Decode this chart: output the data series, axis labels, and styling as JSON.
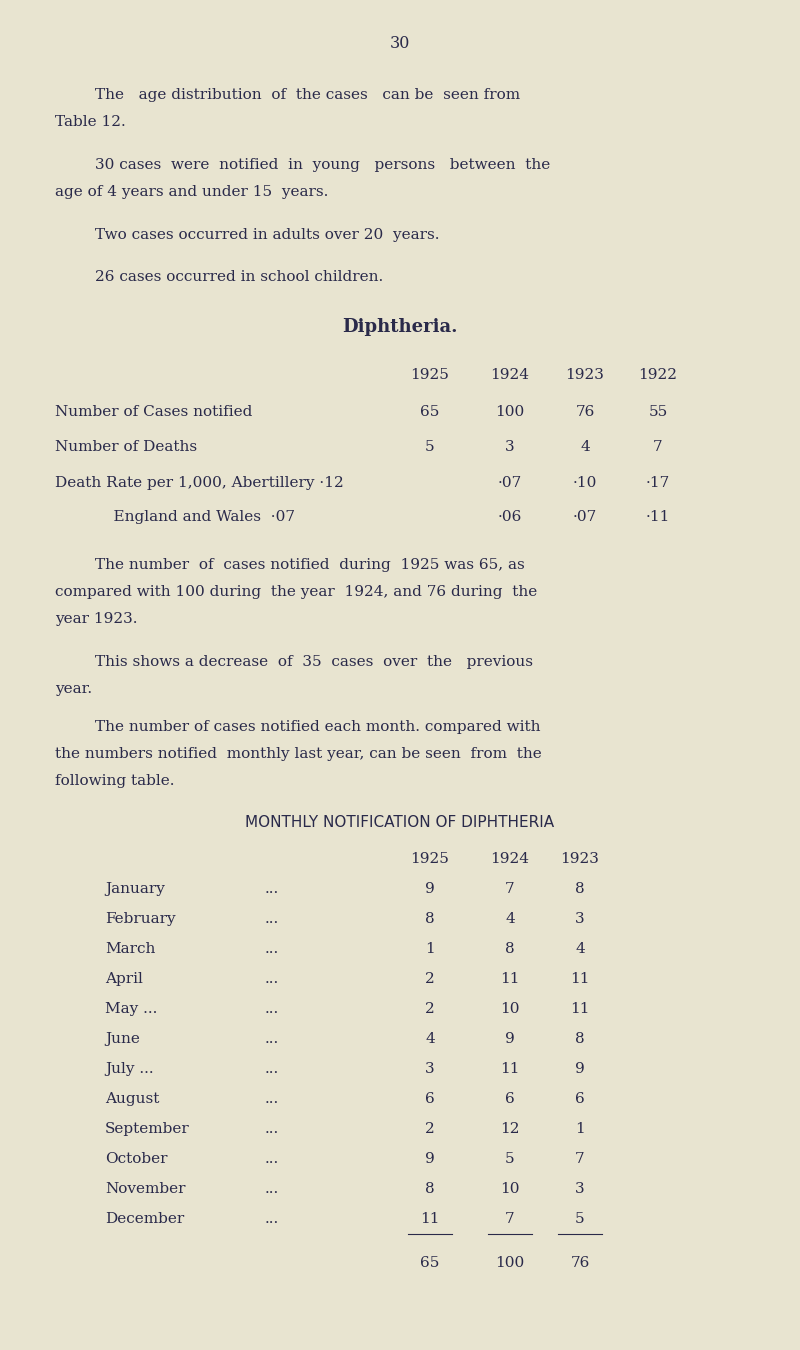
{
  "bg_color": "#e8e4d0",
  "text_color": "#2a2a4a",
  "page_number": "30",
  "table1_years": [
    "1925",
    "1924",
    "1923",
    "1922"
  ],
  "table1_rows": [
    {
      "label": "Number of Cases notified",
      "values": [
        "65",
        "100",
        "76",
        "55"
      ]
    },
    {
      "label": "Number of Deaths",
      "values": [
        "5",
        "3",
        "4",
        "7"
      ]
    },
    {
      "label": "Death Rate per 1,000, Abertillery ·12",
      "values": [
        "·07",
        "·10",
        "·17"
      ]
    },
    {
      "label": "            England and Wales  ·07",
      "values": [
        "·06",
        "·07",
        "·11"
      ]
    }
  ],
  "table2_title": "MONTHLY NOTIFICATION OF DIPHTHERIA",
  "table2_years": [
    "1925",
    "1924",
    "1923"
  ],
  "table2_rows": [
    {
      "month": "January",
      "dots": "...",
      "values": [
        "9",
        "7",
        "8"
      ]
    },
    {
      "month": "February",
      "dots": "...",
      "values": [
        "8",
        "4",
        "3"
      ]
    },
    {
      "month": "March",
      "dots": "...",
      "values": [
        "1",
        "8",
        "4"
      ]
    },
    {
      "month": "April",
      "dots": "...",
      "values": [
        "2",
        "11",
        "11"
      ]
    },
    {
      "month": "May ...",
      "dots": "...",
      "values": [
        "2",
        "10",
        "11"
      ]
    },
    {
      "month": "June",
      "dots": "...",
      "values": [
        "4",
        "9",
        "8"
      ]
    },
    {
      "month": "July ...",
      "dots": "...",
      "values": [
        "3",
        "11",
        "9"
      ]
    },
    {
      "month": "August",
      "dots": "...",
      "values": [
        "6",
        "6",
        "6"
      ]
    },
    {
      "month": "September",
      "dots": "...",
      "values": [
        "2",
        "12",
        "1"
      ]
    },
    {
      "month": "October",
      "dots": "...",
      "values": [
        "9",
        "5",
        "7"
      ]
    },
    {
      "month": "November",
      "dots": "...",
      "values": [
        "8",
        "10",
        "3"
      ]
    },
    {
      "month": "December",
      "dots": "...",
      "values": [
        "11",
        "7",
        "5"
      ]
    }
  ],
  "table2_totals": [
    "65",
    "100",
    "76"
  ]
}
